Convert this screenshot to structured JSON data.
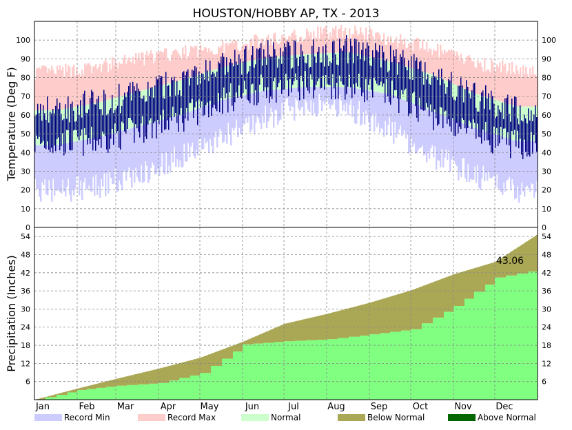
{
  "chart_data": [
    {
      "type": "bar",
      "title": "HOUSTON/HOBBY AP, TX - 2013",
      "ylabel": "Temperature (Deg F)",
      "ylim": [
        0,
        110
      ],
      "yticks": [
        0,
        10,
        20,
        30,
        40,
        50,
        60,
        70,
        80,
        90,
        100
      ],
      "grid": true,
      "months": [
        "Jan",
        "Feb",
        "Mar",
        "Apr",
        "May",
        "Jun",
        "Jul",
        "Aug",
        "Sep",
        "Oct",
        "Nov",
        "Dec"
      ],
      "series": [
        {
          "name": "Record Min",
          "color": "#ccccff"
        },
        {
          "name": "Record Max",
          "color": "#ffcccc"
        },
        {
          "name": "Normal",
          "color": "#ccffcc"
        },
        {
          "name": "",
          "color": "#000080"
        }
      ],
      "normal_high_by_month": [
        62,
        66,
        72,
        78,
        85,
        90,
        92,
        93,
        88,
        81,
        71,
        64
      ],
      "normal_low_by_month": [
        44,
        48,
        54,
        60,
        68,
        73,
        75,
        75,
        71,
        62,
        53,
        46
      ],
      "record_high_by_month": [
        83,
        85,
        90,
        93,
        96,
        100,
        103,
        105,
        101,
        95,
        88,
        84
      ],
      "record_low_by_month": [
        20,
        22,
        28,
        38,
        48,
        58,
        66,
        64,
        52,
        38,
        28,
        20
      ],
      "observed_high_by_month": [
        63,
        66,
        71,
        78,
        85,
        92,
        93,
        95,
        90,
        82,
        70,
        62
      ],
      "observed_low_by_month": [
        45,
        46,
        52,
        58,
        68,
        74,
        76,
        76,
        71,
        60,
        50,
        44
      ]
    },
    {
      "type": "area",
      "ylabel": "Precipitation (Inches)",
      "ylim": [
        0,
        57
      ],
      "yticks": [
        6,
        12,
        18,
        24,
        30,
        36,
        42,
        48,
        54
      ],
      "grid": true,
      "months": [
        "Jan",
        "Feb",
        "Mar",
        "Apr",
        "May",
        "Jun",
        "Jul",
        "Aug",
        "Sep",
        "Oct",
        "Nov",
        "Dec"
      ],
      "annotation": "43.06",
      "normal_cumulative_end_of_month": [
        3.7,
        6.9,
        10.3,
        13.9,
        19.2,
        25.1,
        28.4,
        32.1,
        36.2,
        41.5,
        45.6,
        54.8
      ],
      "observed_cumulative_end_of_month": [
        3.2,
        4.6,
        5.5,
        8.8,
        18.3,
        19.3,
        20.0,
        21.6,
        23.3,
        31.0,
        40.4,
        43.06
      ],
      "legend": [
        {
          "name": "Record Min",
          "color": "#ccccff"
        },
        {
          "name": "Record Max",
          "color": "#ffcccc"
        },
        {
          "name": "Normal",
          "color": "#ccffcc"
        },
        {
          "name": "Below Normal",
          "color": "#aaa855"
        },
        {
          "name": "Above Normal",
          "color": "#006600"
        }
      ]
    }
  ]
}
